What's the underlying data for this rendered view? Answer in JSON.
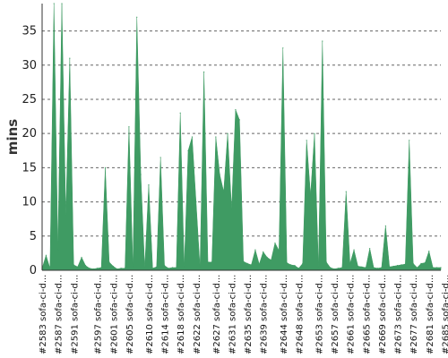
{
  "chart_data": {
    "type": "area",
    "ylabel": "mins",
    "ylim": [
      0,
      39
    ],
    "yticks": [
      0,
      5,
      10,
      15,
      20,
      25,
      30,
      35
    ],
    "grid": true,
    "color": "#3f9b63",
    "x_start_build": 2583,
    "x_labels": [
      "#2583 sofa-ci-d...",
      "#2587 sofa-ci-d...",
      "#2591 sofa-ci-d...",
      "#2597 sofa-ci-d...",
      "#2601 sofa-ci-d...",
      "#2605 sofa-ci-d...",
      "#2610 sofa-ci-d...",
      "#2614 sofa-ci-d...",
      "#2618 sofa-ci-d...",
      "#2622 sofa-ci-d...",
      "#2627 sofa-ci-d...",
      "#2631 sofa-ci-d...",
      "#2635 sofa-ci-d...",
      "#2639 sofa-ci-d...",
      "#2644 sofa-ci-d...",
      "#2648 sofa-ci-d...",
      "#2653 sofa-ci-d...",
      "#2657 sofa-ci-d...",
      "#2661 sofa-ci-d...",
      "#2665 sofa-ci-d...",
      "#2669 sofa-ci-d...",
      "#2673 sofa-ci-d...",
      "#2677 sofa-ci-d...",
      "#2681 sofa-ci-d...",
      "#2685 sofa-ci-d..."
    ],
    "values": [
      0.3,
      2.2,
      0.3,
      39,
      3,
      39,
      8,
      31,
      0.8,
      0.5,
      1.9,
      0.7,
      0.3,
      0.2,
      0.3,
      0.4,
      15,
      1.2,
      0.6,
      0.2,
      0.3,
      0.3,
      21,
      0.5,
      37,
      14,
      0.4,
      12.5,
      0.3,
      0.5,
      16.5,
      0.7,
      0.3,
      0.4,
      0.4,
      23,
      0.5,
      17.5,
      19.5,
      10,
      0.4,
      29,
      1.2,
      1.2,
      19.5,
      14,
      11.5,
      20,
      9,
      23.5,
      22,
      1.3,
      1,
      0.8,
      3,
      0.9,
      2.7,
      1.9,
      1.5,
      4,
      2.9,
      32.5,
      1.1,
      0.8,
      0.7,
      0.3,
      1,
      19,
      11,
      20,
      0.5,
      33.5,
      1.2,
      0.4,
      0.2,
      0.3,
      0.4,
      11.5,
      1,
      3,
      0.6,
      0.5,
      0.4,
      3.2,
      0.4,
      0.3,
      0.4,
      6.5,
      0.5,
      0.6,
      0.7,
      0.8,
      0.9,
      19,
      1,
      0.4,
      1,
      1.1,
      2.8,
      0.4,
      0.4,
      0.4
    ]
  }
}
